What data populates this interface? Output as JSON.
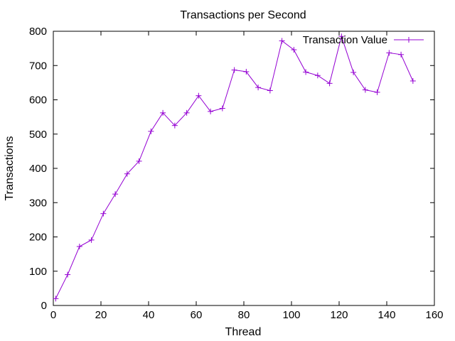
{
  "chart_data": {
    "type": "line",
    "title": "Transactions per Second",
    "xlabel": "Thread",
    "ylabel": "Transactions",
    "xlim": [
      0,
      160
    ],
    "ylim": [
      0,
      800
    ],
    "xticks": [
      0,
      20,
      40,
      60,
      80,
      100,
      120,
      140,
      160
    ],
    "yticks": [
      0,
      100,
      200,
      300,
      400,
      500,
      600,
      700,
      800
    ],
    "grid": false,
    "legend_position": "top-right",
    "series": [
      {
        "name": "Transaction Value",
        "color": "#9400d3",
        "marker": "plus",
        "x": [
          1,
          6,
          11,
          16,
          21,
          26,
          31,
          36,
          41,
          46,
          51,
          56,
          61,
          66,
          71,
          76,
          81,
          86,
          91,
          96,
          101,
          106,
          111,
          116,
          121,
          126,
          131,
          136,
          141,
          146,
          151
        ],
        "y": [
          20,
          90,
          172,
          191,
          268,
          325,
          384,
          421,
          508,
          562,
          525,
          562,
          612,
          566,
          575,
          687,
          682,
          636,
          627,
          772,
          746,
          681,
          671,
          648,
          785,
          680,
          629,
          622,
          737,
          732,
          655
        ]
      }
    ]
  }
}
